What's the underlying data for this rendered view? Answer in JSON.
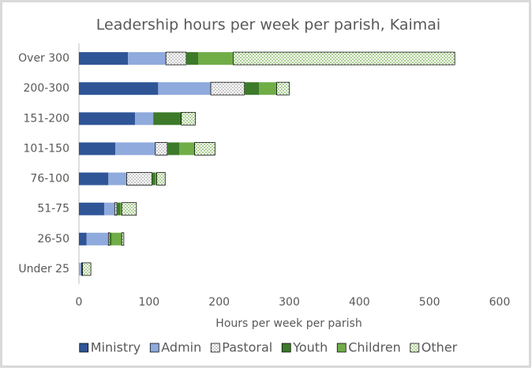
{
  "chart_data": {
    "type": "stacked_barh",
    "title": "Leadership hours per week per parish, Kaimai",
    "x_label": "Hours per week per parish",
    "categories": [
      "Over 300",
      "200-300",
      "151-200",
      "101-150",
      "76-100",
      "51-75",
      "26-50",
      "Under 25"
    ],
    "series": [
      {
        "name": "Ministry",
        "color": "#2f5597",
        "values": [
          70,
          113,
          80,
          52,
          42,
          36,
          11,
          0
        ]
      },
      {
        "name": "Admin",
        "color": "#8faadc",
        "values": [
          54,
          75,
          26,
          57,
          26,
          15,
          31,
          4
        ]
      },
      {
        "name": "Pastoral",
        "color": "#a5a5a5",
        "pattern": "dots",
        "values": [
          29,
          48,
          0,
          17,
          36,
          3,
          2,
          1
        ]
      },
      {
        "name": "Youth",
        "color": "#3d7a2a",
        "values": [
          17,
          21,
          40,
          17,
          5,
          5,
          3,
          0
        ]
      },
      {
        "name": "Children",
        "color": "#70ad47",
        "values": [
          50,
          25,
          0,
          22,
          2,
          2,
          14,
          0
        ]
      },
      {
        "name": "Other",
        "color": "#70ad47",
        "pattern": "dots",
        "values": [
          316,
          18,
          20,
          29,
          12,
          21,
          3,
          12
        ]
      }
    ],
    "xlim": [
      0,
      600
    ],
    "xticks": [
      0,
      100,
      200,
      300,
      400,
      500,
      600
    ],
    "grid": false,
    "legend": "bottom"
  }
}
